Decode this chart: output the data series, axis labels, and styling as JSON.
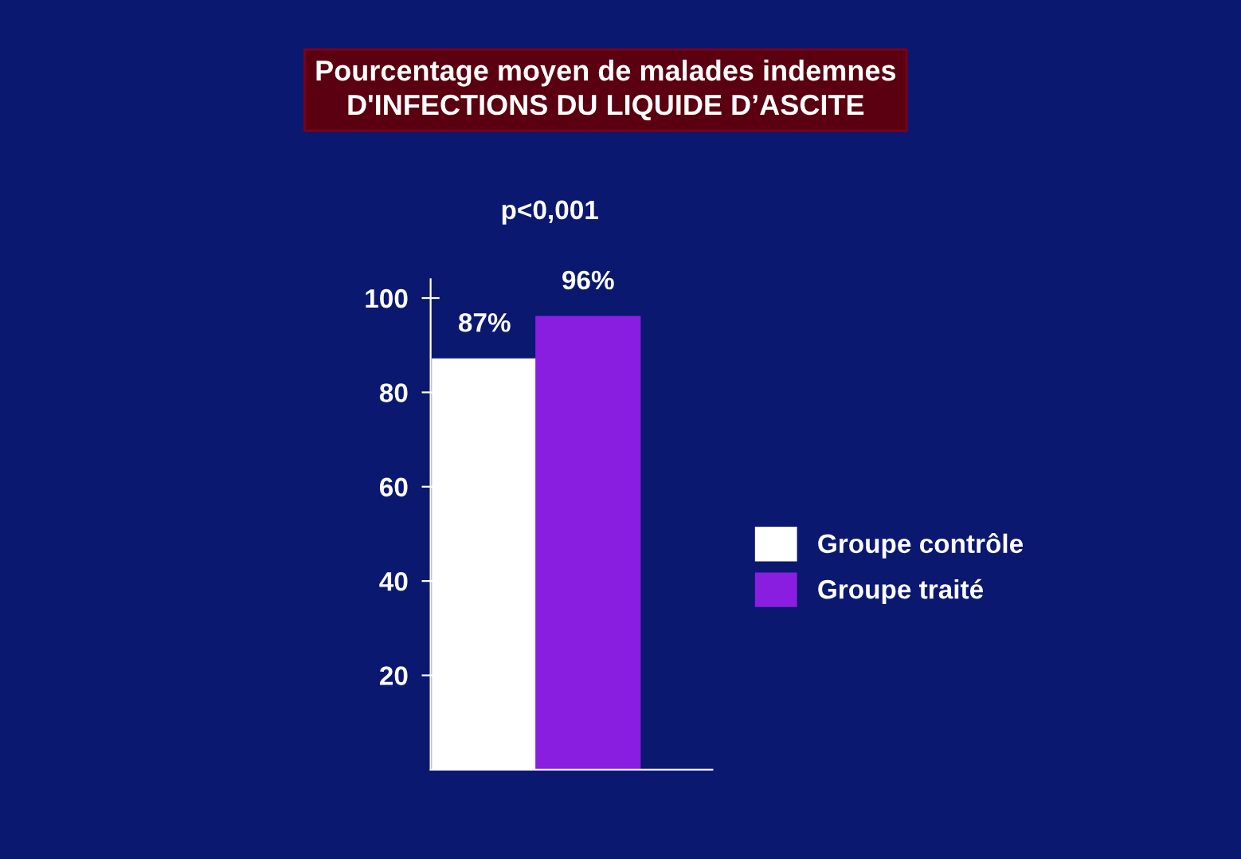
{
  "chart_data": {
    "type": "bar",
    "title": "Pourcentage moyen de malades indemnes\nD'INFECTIONS DU LIQUIDE D’ASCITE",
    "categories": [
      null
    ],
    "series": [
      {
        "name": "Groupe contrôle",
        "color": "#ffffff",
        "values": [
          87
        ],
        "value_labels": [
          "87%"
        ]
      },
      {
        "name": "Groupe traité",
        "color": "#8a1ee0",
        "values": [
          96
        ],
        "value_labels": [
          "96%"
        ]
      }
    ],
    "annotations": [
      "p<0,001"
    ],
    "ylim": [
      0,
      104
    ],
    "yticks": [
      20,
      40,
      60,
      80,
      100
    ],
    "grid": false,
    "legend": "right"
  }
}
